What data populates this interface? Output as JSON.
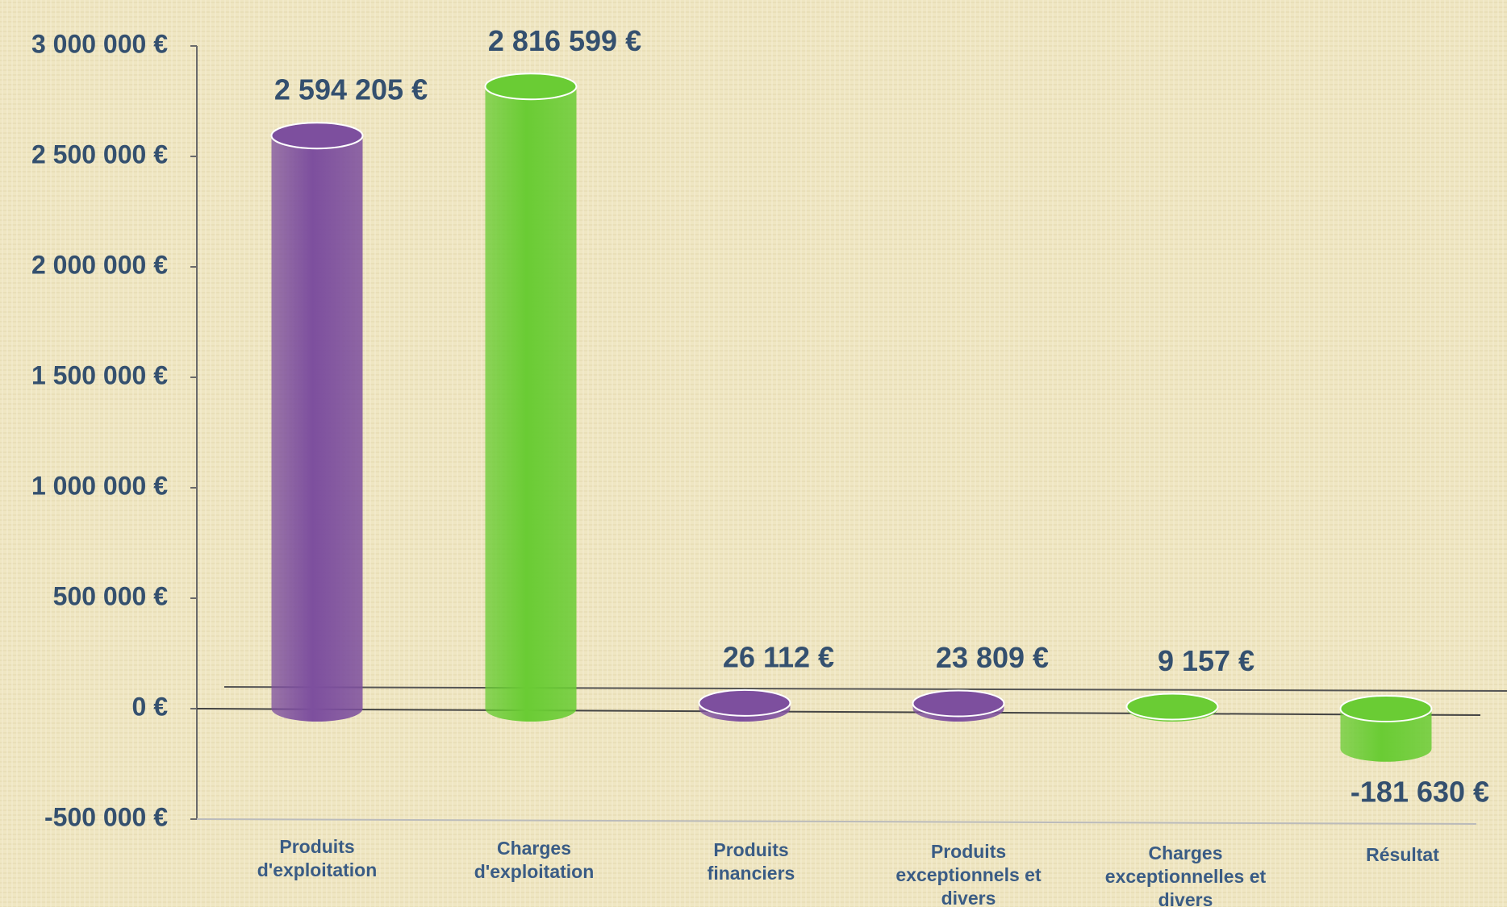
{
  "chart_data": {
    "type": "bar",
    "categories": [
      "Produits d'exploitation",
      "Charges d'exploitation",
      "Produits financiers",
      "Produits exceptionnels et divers",
      "Charges exceptionnelles et divers",
      "Résultat"
    ],
    "values": [
      2594205,
      2816599,
      26112,
      23809,
      9157,
      -181630
    ],
    "value_labels": [
      "2 594 205 €",
      "2 816 599 €",
      "26 112 €",
      "23 809 €",
      "9 157 €",
      "-181 630 €"
    ],
    "colors": [
      "#7d4f9e",
      "#6acc34",
      "#7d4f9e",
      "#7d4f9e",
      "#6acc34",
      "#6acc34"
    ],
    "ylim": [
      -500000,
      3000000
    ],
    "yticks": [
      {
        "value": -500000,
        "label": "-500 000 €"
      },
      {
        "value": 0,
        "label": "0 €"
      },
      {
        "value": 500000,
        "label": "500 000 €"
      },
      {
        "value": 1000000,
        "label": "1 000 000 €"
      },
      {
        "value": 1500000,
        "label": "1 500 000 €"
      },
      {
        "value": 2000000,
        "label": "2 000 000 €"
      },
      {
        "value": 2500000,
        "label": "2 500 000 €"
      },
      {
        "value": 3000000,
        "label": "3 000 000 €"
      }
    ]
  }
}
